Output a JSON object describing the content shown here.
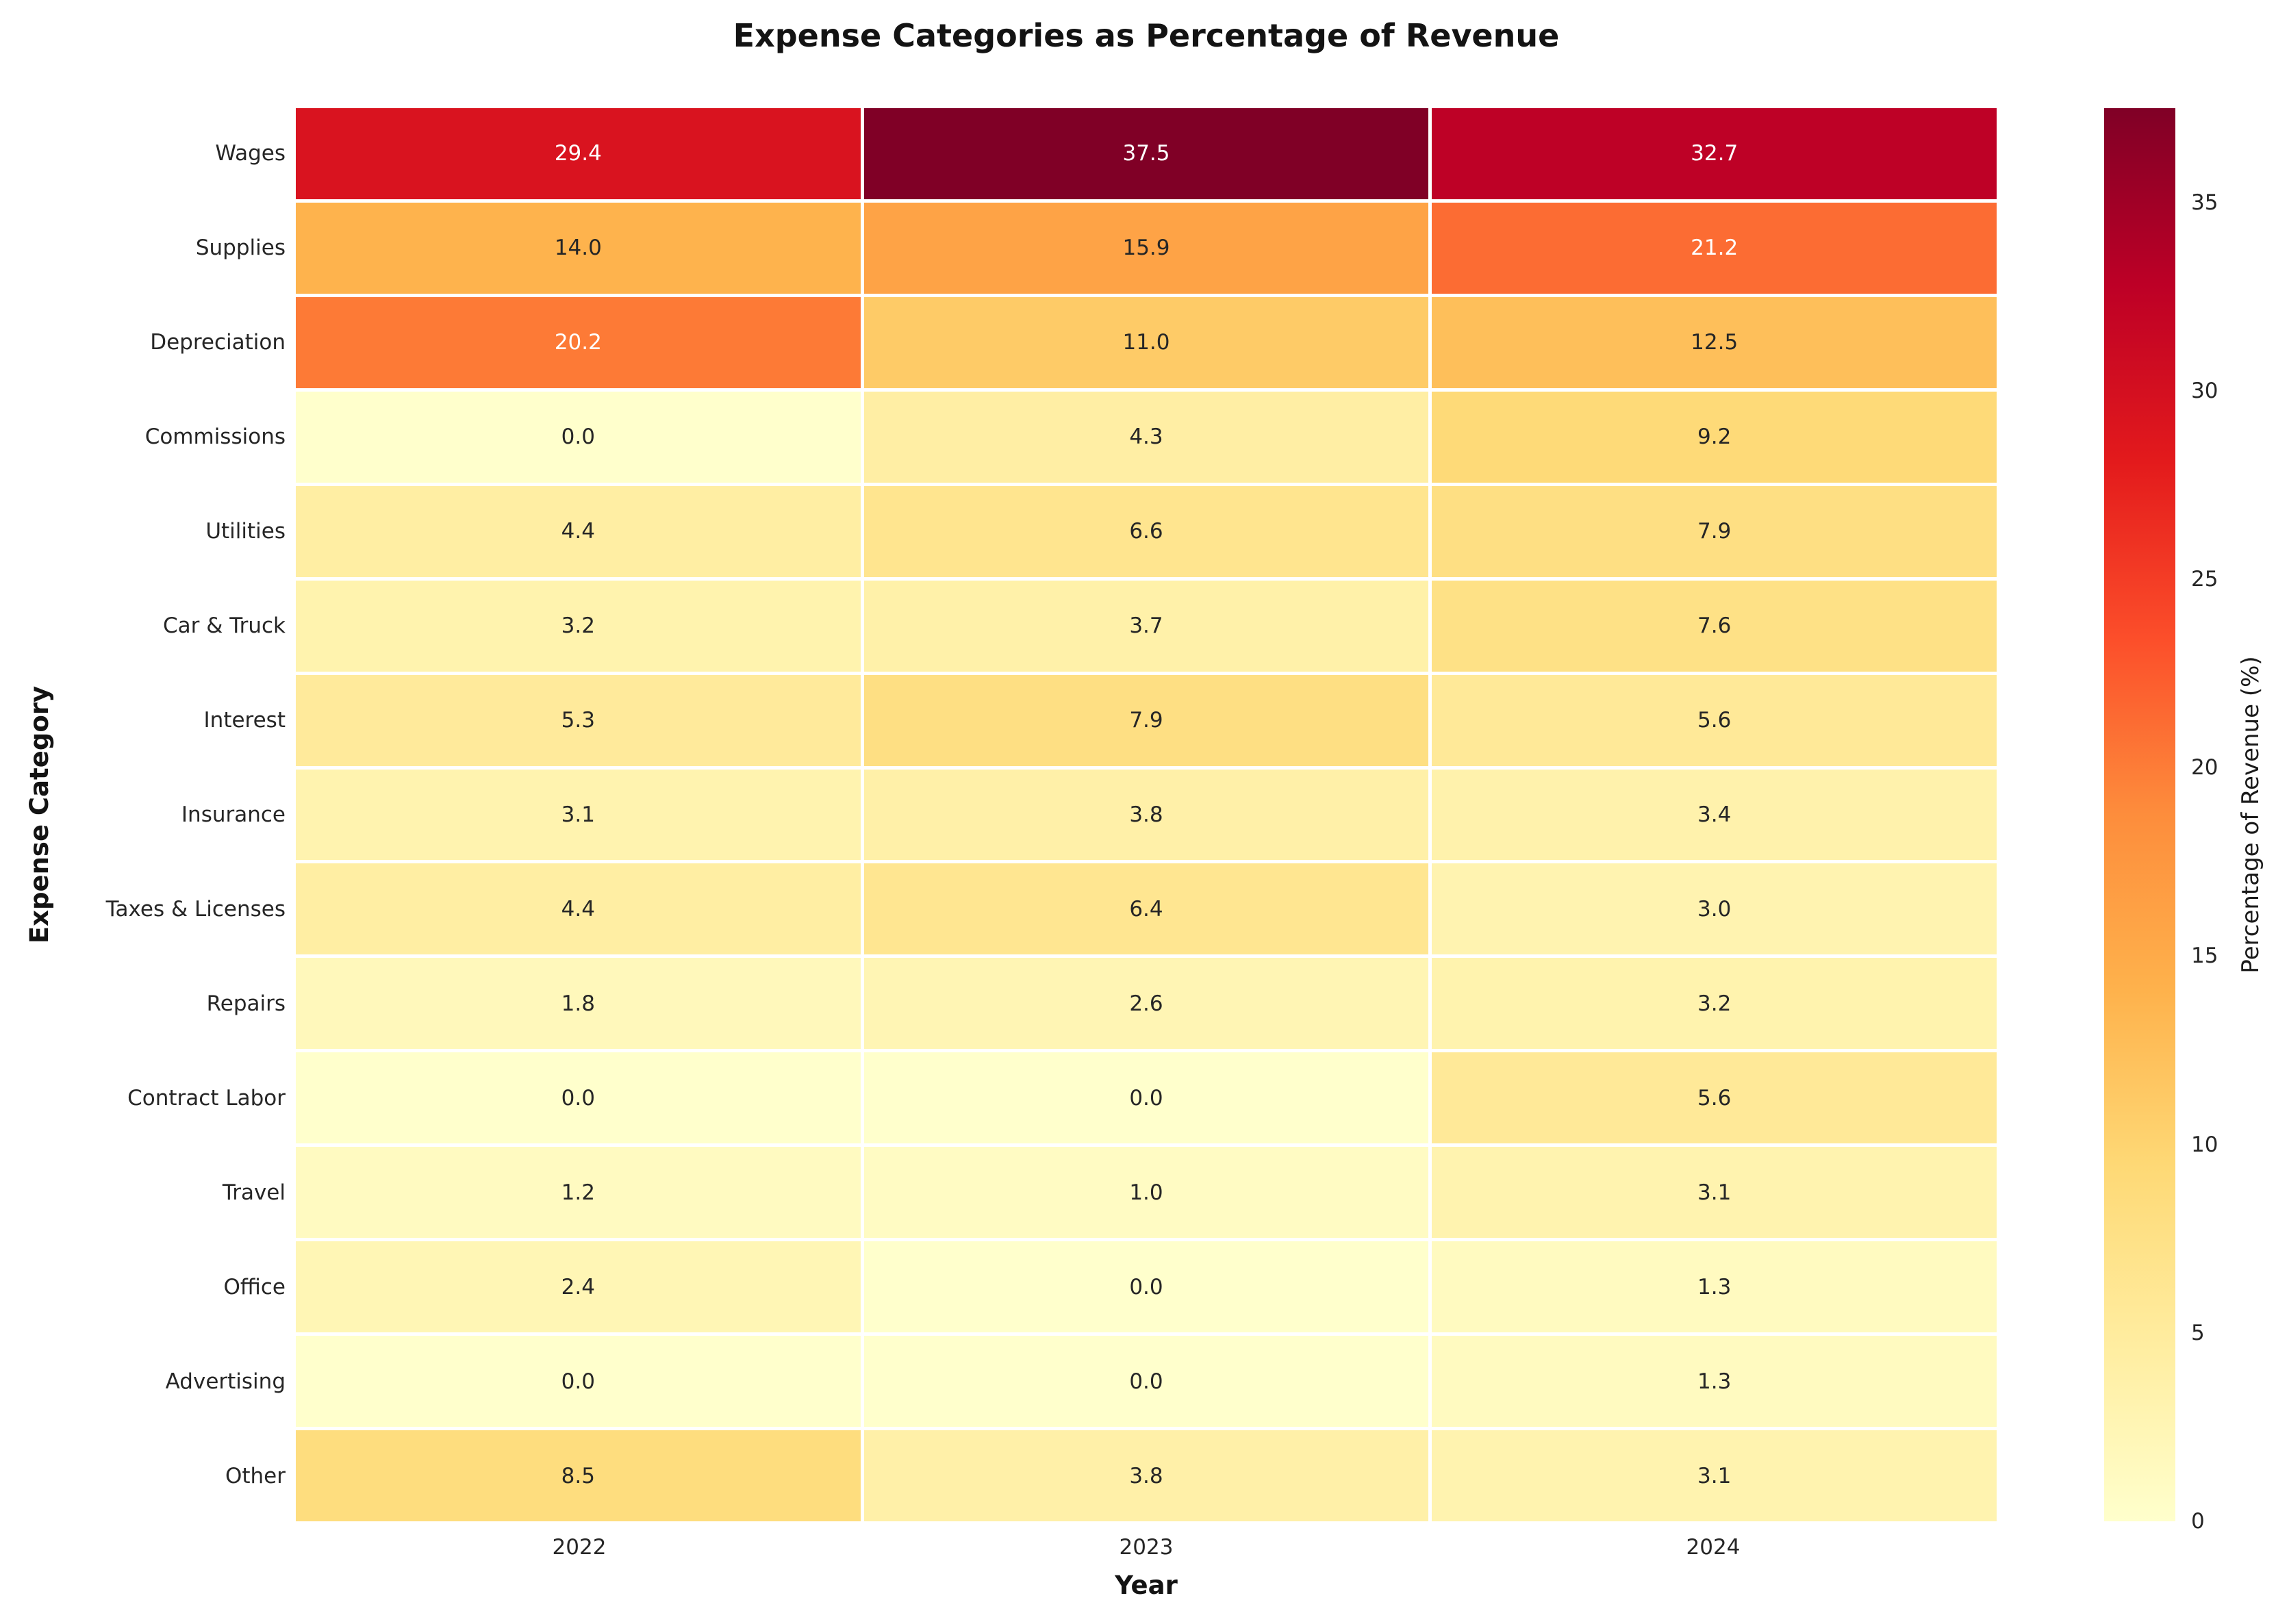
{
  "chart_data": {
    "type": "heatmap",
    "title": "Expense Categories as Percentage of Revenue",
    "xlabel": "Year",
    "ylabel": "Expense Category",
    "columns": [
      "2022",
      "2023",
      "2024"
    ],
    "rows": [
      "Wages",
      "Supplies",
      "Depreciation",
      "Commissions",
      "Utilities",
      "Car & Truck",
      "Interest",
      "Insurance",
      "Taxes & Licenses",
      "Repairs",
      "Contract Labor",
      "Travel",
      "Office",
      "Advertising",
      "Other"
    ],
    "series": [
      {
        "name": "Wages",
        "values": [
          29.4,
          37.5,
          32.7
        ]
      },
      {
        "name": "Supplies",
        "values": [
          14.0,
          15.9,
          21.2
        ]
      },
      {
        "name": "Depreciation",
        "values": [
          20.2,
          11.0,
          12.5
        ]
      },
      {
        "name": "Commissions",
        "values": [
          0.0,
          4.3,
          9.2
        ]
      },
      {
        "name": "Utilities",
        "values": [
          4.4,
          6.6,
          7.9
        ]
      },
      {
        "name": "Car & Truck",
        "values": [
          3.2,
          3.7,
          7.6
        ]
      },
      {
        "name": "Interest",
        "values": [
          5.3,
          7.9,
          5.6
        ]
      },
      {
        "name": "Insurance",
        "values": [
          3.1,
          3.8,
          3.4
        ]
      },
      {
        "name": "Taxes & Licenses",
        "values": [
          4.4,
          6.4,
          3.0
        ]
      },
      {
        "name": "Repairs",
        "values": [
          1.8,
          2.6,
          3.2
        ]
      },
      {
        "name": "Contract Labor",
        "values": [
          0.0,
          0.0,
          5.6
        ]
      },
      {
        "name": "Travel",
        "values": [
          1.2,
          1.0,
          3.1
        ]
      },
      {
        "name": "Office",
        "values": [
          2.4,
          0.0,
          1.3
        ]
      },
      {
        "name": "Advertising",
        "values": [
          0.0,
          0.0,
          1.3
        ]
      },
      {
        "name": "Other",
        "values": [
          8.5,
          3.8,
          3.1
        ]
      }
    ],
    "annotation_decimals": 1,
    "grid_on": false,
    "colorbar": {
      "label": "Percentage of Revenue (%)",
      "ticks": [
        0,
        5,
        10,
        15,
        20,
        25,
        30,
        35
      ],
      "vmin": 0,
      "vmax": 37.5,
      "colormap_name": "YlOrRd",
      "colormap_stops": [
        "#ffffcc",
        "#ffeda0",
        "#fed976",
        "#feb24c",
        "#fd8d3c",
        "#fc4e2a",
        "#e31a1c",
        "#bd0026",
        "#800026"
      ],
      "position": "right"
    },
    "colors": {
      "annotation_text_dark": "#262626",
      "annotation_text_light": "#ffffff",
      "cell_gap": "#ffffff",
      "background": "#ffffff"
    }
  }
}
